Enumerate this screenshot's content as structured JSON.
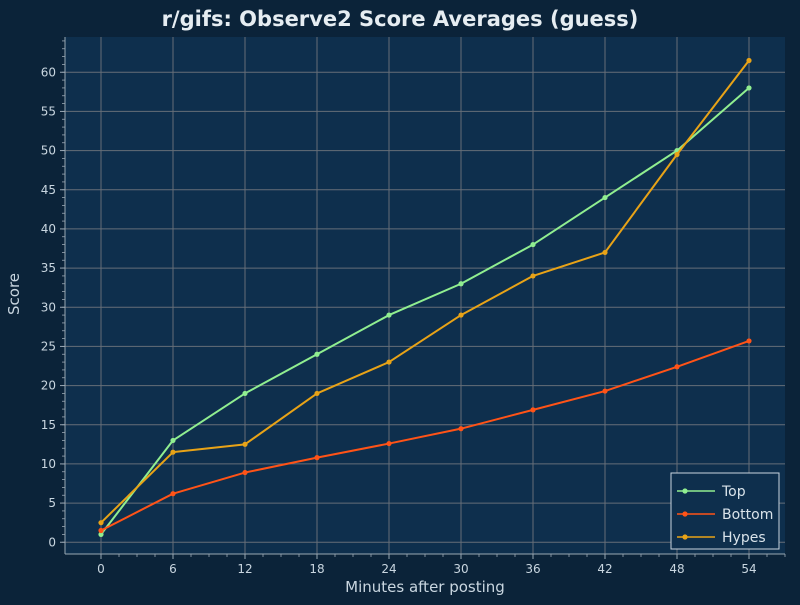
{
  "chart_data": {
    "type": "line",
    "title": "r/gifs: Observe2 Score Averages (guess)",
    "xlabel": "Minutes after posting",
    "ylabel": "Score",
    "x": [
      0,
      6,
      12,
      18,
      24,
      30,
      36,
      42,
      48,
      54
    ],
    "xlim": [
      -3,
      57
    ],
    "ylim": [
      -1.5,
      64.5
    ],
    "xticks": [
      "0",
      "6",
      "12",
      "18",
      "24",
      "30",
      "36",
      "42",
      "48",
      "54"
    ],
    "yticks": [
      "0",
      "5",
      "10",
      "15",
      "20",
      "25",
      "30",
      "35",
      "40",
      "45",
      "50",
      "55",
      "60"
    ],
    "grid": true,
    "legend_position": "bottom-right",
    "series": [
      {
        "name": "Top",
        "color": "#90ee90",
        "values": [
          1.0,
          13.0,
          19.0,
          24.0,
          29.0,
          33.0,
          38.0,
          44.0,
          50.0,
          58.0
        ]
      },
      {
        "name": "Bottom",
        "color": "#ff5317",
        "values": [
          1.5,
          6.2,
          8.9,
          10.8,
          12.6,
          14.5,
          16.9,
          19.3,
          22.4,
          25.7
        ]
      },
      {
        "name": "Hypes",
        "color": "#e8a317",
        "values": [
          2.5,
          11.5,
          12.5,
          19.0,
          23.0,
          29.0,
          34.0,
          37.0,
          49.5,
          61.5
        ]
      }
    ],
    "colors": {
      "background": "#0b2339",
      "plot_background": "#0e2f4d",
      "grid": "#666e78",
      "axis": "#9aa8b4",
      "text": "#c9d6e0"
    }
  }
}
